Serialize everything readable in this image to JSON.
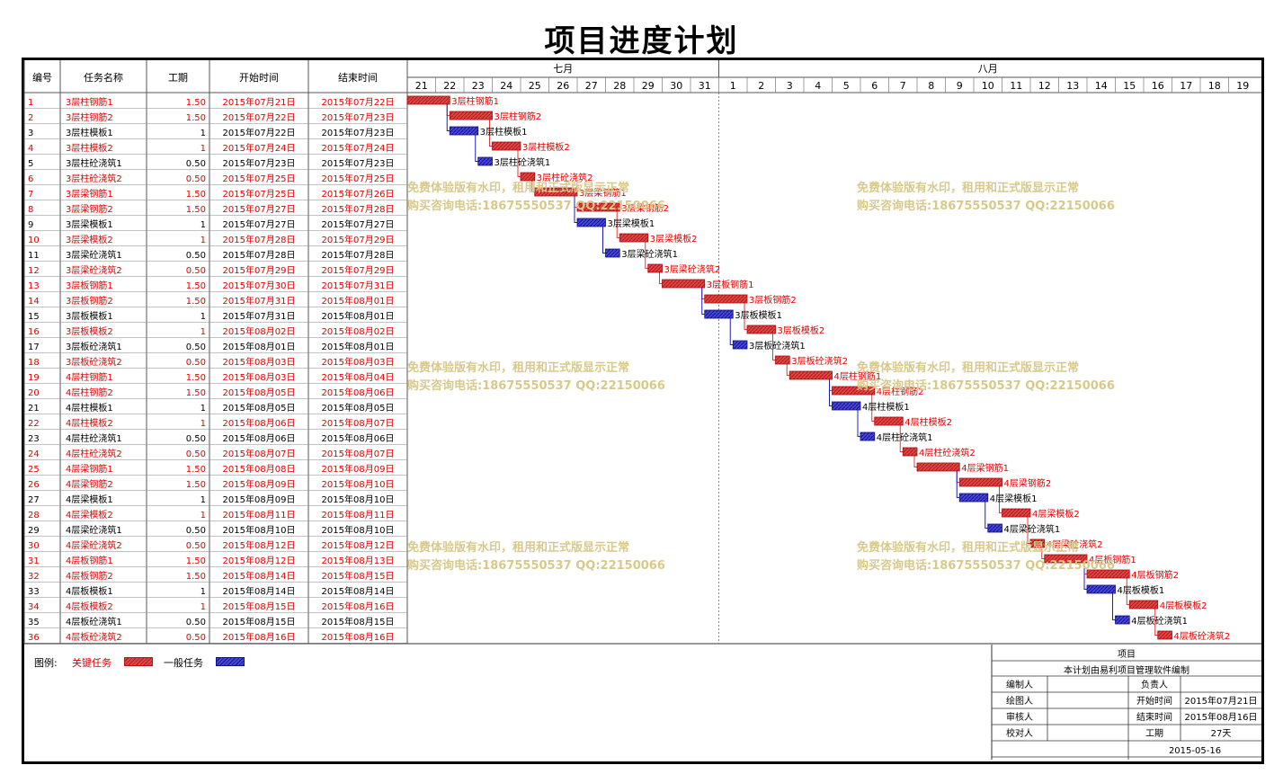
{
  "title": "项目进度计划",
  "colors": {
    "critical": "#e33b3b",
    "normal": "#3b3bc9",
    "critical_text": "#e00000",
    "watermark": "#d8c98a"
  },
  "headers": {
    "id": "编号",
    "name": "任务名称",
    "duration": "工期",
    "start": "开始时间",
    "end": "结束时间"
  },
  "watermark": {
    "line1": "免费体验版有水印，租用和正式版显示正常",
    "line2": "购买咨询电话:18675550537 QQ:22150066"
  },
  "legend": {
    "label": "图例:",
    "critical": "关键任务",
    "normal": "一般任务"
  },
  "info": {
    "project_label": "项目",
    "note": "本计划由易利项目管理软件编制",
    "rows": [
      {
        "l1": "编制人",
        "v1": "",
        "l2": "负责人",
        "v2": ""
      },
      {
        "l1": "绘图人",
        "v1": "",
        "l2": "开始时间",
        "v2": "2015年07月21日"
      },
      {
        "l1": "审核人",
        "v1": "",
        "l2": "结束时间",
        "v2": "2015年08月16日"
      },
      {
        "l1": "校对人",
        "v1": "",
        "l2": "工期",
        "v2": "27天"
      }
    ],
    "date": "2015-05-16"
  },
  "chart_data": {
    "type": "gantt",
    "timeline": {
      "months": [
        {
          "label": "七月",
          "days": [
            "21",
            "22",
            "23",
            "24",
            "25",
            "26",
            "27",
            "28",
            "29",
            "30",
            "31"
          ]
        },
        {
          "label": "八月",
          "days": [
            "1",
            "2",
            "3",
            "4",
            "5",
            "6",
            "7",
            "8",
            "9",
            "10",
            "11",
            "12",
            "13",
            "14",
            "15",
            "16",
            "17",
            "18",
            "19"
          ]
        }
      ],
      "origin": "2015-07-21"
    },
    "tasks": [
      {
        "id": "1",
        "name": "3层柱钢筋1",
        "dur": "1.50",
        "start": "2015年07月21日",
        "end": "2015年07月22日",
        "s": 0,
        "d": 1.5,
        "critical": true
      },
      {
        "id": "2",
        "name": "3层柱钢筋2",
        "dur": "1.50",
        "start": "2015年07月22日",
        "end": "2015年07月23日",
        "s": 1.5,
        "d": 1.5,
        "critical": true
      },
      {
        "id": "3",
        "name": "3层柱模板1",
        "dur": "1",
        "start": "2015年07月22日",
        "end": "2015年07月23日",
        "s": 1.5,
        "d": 1,
        "critical": false
      },
      {
        "id": "4",
        "name": "3层柱模板2",
        "dur": "1",
        "start": "2015年07月24日",
        "end": "2015年07月24日",
        "s": 3,
        "d": 1,
        "critical": true
      },
      {
        "id": "5",
        "name": "3层柱砼浇筑1",
        "dur": "0.50",
        "start": "2015年07月23日",
        "end": "2015年07月23日",
        "s": 2.5,
        "d": 0.5,
        "critical": false
      },
      {
        "id": "6",
        "name": "3层柱砼浇筑2",
        "dur": "0.50",
        "start": "2015年07月25日",
        "end": "2015年07月25日",
        "s": 4,
        "d": 0.5,
        "critical": true
      },
      {
        "id": "7",
        "name": "3层梁钢筋1",
        "dur": "1.50",
        "start": "2015年07月25日",
        "end": "2015年07月26日",
        "s": 4.5,
        "d": 1.5,
        "critical": true
      },
      {
        "id": "8",
        "name": "3层梁钢筋2",
        "dur": "1.50",
        "start": "2015年07月27日",
        "end": "2015年07月28日",
        "s": 6,
        "d": 1.5,
        "critical": true
      },
      {
        "id": "9",
        "name": "3层梁模板1",
        "dur": "1",
        "start": "2015年07月27日",
        "end": "2015年07月27日",
        "s": 6,
        "d": 1,
        "critical": false
      },
      {
        "id": "10",
        "name": "3层梁模板2",
        "dur": "1",
        "start": "2015年07月28日",
        "end": "2015年07月29日",
        "s": 7.5,
        "d": 1,
        "critical": true
      },
      {
        "id": "11",
        "name": "3层梁砼浇筑1",
        "dur": "0.50",
        "start": "2015年07月28日",
        "end": "2015年07月28日",
        "s": 7,
        "d": 0.5,
        "critical": false
      },
      {
        "id": "12",
        "name": "3层梁砼浇筑2",
        "dur": "0.50",
        "start": "2015年07月29日",
        "end": "2015年07月29日",
        "s": 8.5,
        "d": 0.5,
        "critical": true
      },
      {
        "id": "13",
        "name": "3层板钢筋1",
        "dur": "1.50",
        "start": "2015年07月30日",
        "end": "2015年07月31日",
        "s": 9,
        "d": 1.5,
        "critical": true
      },
      {
        "id": "14",
        "name": "3层板钢筋2",
        "dur": "1.50",
        "start": "2015年07月31日",
        "end": "2015年08月01日",
        "s": 10.5,
        "d": 1.5,
        "critical": true
      },
      {
        "id": "15",
        "name": "3层板模板1",
        "dur": "1",
        "start": "2015年07月31日",
        "end": "2015年08月01日",
        "s": 10.5,
        "d": 1,
        "critical": false
      },
      {
        "id": "16",
        "name": "3层板模板2",
        "dur": "1",
        "start": "2015年08月02日",
        "end": "2015年08月02日",
        "s": 12,
        "d": 1,
        "critical": true
      },
      {
        "id": "17",
        "name": "3层板砼浇筑1",
        "dur": "0.50",
        "start": "2015年08月01日",
        "end": "2015年08月01日",
        "s": 11.5,
        "d": 0.5,
        "critical": false
      },
      {
        "id": "18",
        "name": "3层板砼浇筑2",
        "dur": "0.50",
        "start": "2015年08月03日",
        "end": "2015年08月03日",
        "s": 13,
        "d": 0.5,
        "critical": true
      },
      {
        "id": "19",
        "name": "4层柱钢筋1",
        "dur": "1.50",
        "start": "2015年08月03日",
        "end": "2015年08月04日",
        "s": 13.5,
        "d": 1.5,
        "critical": true
      },
      {
        "id": "20",
        "name": "4层柱钢筋2",
        "dur": "1.50",
        "start": "2015年08月05日",
        "end": "2015年08月06日",
        "s": 15,
        "d": 1.5,
        "critical": true
      },
      {
        "id": "21",
        "name": "4层柱模板1",
        "dur": "1",
        "start": "2015年08月05日",
        "end": "2015年08月05日",
        "s": 15,
        "d": 1,
        "critical": false
      },
      {
        "id": "22",
        "name": "4层柱模板2",
        "dur": "1",
        "start": "2015年08月06日",
        "end": "2015年08月07日",
        "s": 16.5,
        "d": 1,
        "critical": true
      },
      {
        "id": "23",
        "name": "4层柱砼浇筑1",
        "dur": "0.50",
        "start": "2015年08月06日",
        "end": "2015年08月06日",
        "s": 16,
        "d": 0.5,
        "critical": false
      },
      {
        "id": "24",
        "name": "4层柱砼浇筑2",
        "dur": "0.50",
        "start": "2015年08月07日",
        "end": "2015年08月07日",
        "s": 17.5,
        "d": 0.5,
        "critical": true
      },
      {
        "id": "25",
        "name": "4层梁钢筋1",
        "dur": "1.50",
        "start": "2015年08月08日",
        "end": "2015年08月09日",
        "s": 18,
        "d": 1.5,
        "critical": true
      },
      {
        "id": "26",
        "name": "4层梁钢筋2",
        "dur": "1.50",
        "start": "2015年08月09日",
        "end": "2015年08月10日",
        "s": 19.5,
        "d": 1.5,
        "critical": true
      },
      {
        "id": "27",
        "name": "4层梁模板1",
        "dur": "1",
        "start": "2015年08月09日",
        "end": "2015年08月10日",
        "s": 19.5,
        "d": 1,
        "critical": false
      },
      {
        "id": "28",
        "name": "4层梁模板2",
        "dur": "1",
        "start": "2015年08月11日",
        "end": "2015年08月11日",
        "s": 21,
        "d": 1,
        "critical": true
      },
      {
        "id": "29",
        "name": "4层梁砼浇筑1",
        "dur": "0.50",
        "start": "2015年08月10日",
        "end": "2015年08月10日",
        "s": 20.5,
        "d": 0.5,
        "critical": false
      },
      {
        "id": "30",
        "name": "4层梁砼浇筑2",
        "dur": "0.50",
        "start": "2015年08月12日",
        "end": "2015年08月12日",
        "s": 22,
        "d": 0.5,
        "critical": true
      },
      {
        "id": "31",
        "name": "4层板钢筋1",
        "dur": "1.50",
        "start": "2015年08月12日",
        "end": "2015年08月13日",
        "s": 22.5,
        "d": 1.5,
        "critical": true
      },
      {
        "id": "32",
        "name": "4层板钢筋2",
        "dur": "1.50",
        "start": "2015年08月14日",
        "end": "2015年08月15日",
        "s": 24,
        "d": 1.5,
        "critical": true
      },
      {
        "id": "33",
        "name": "4层板模板1",
        "dur": "1",
        "start": "2015年08月14日",
        "end": "2015年08月14日",
        "s": 24,
        "d": 1,
        "critical": false
      },
      {
        "id": "34",
        "name": "4层板模板2",
        "dur": "1",
        "start": "2015年08月15日",
        "end": "2015年08月16日",
        "s": 25.5,
        "d": 1,
        "critical": true
      },
      {
        "id": "35",
        "name": "4层板砼浇筑1",
        "dur": "0.50",
        "start": "2015年08月15日",
        "end": "2015年08月15日",
        "s": 25,
        "d": 0.5,
        "critical": false
      },
      {
        "id": "36",
        "name": "4层板砼浇筑2",
        "dur": "0.50",
        "start": "2015年08月16日",
        "end": "2015年08月16日",
        "s": 26.5,
        "d": 0.5,
        "critical": true
      }
    ],
    "links": [
      [
        1,
        2
      ],
      [
        1,
        3
      ],
      [
        2,
        4
      ],
      [
        3,
        5
      ],
      [
        4,
        6
      ],
      [
        6,
        7
      ],
      [
        7,
        8
      ],
      [
        7,
        9
      ],
      [
        8,
        10
      ],
      [
        9,
        11
      ],
      [
        10,
        12
      ],
      [
        12,
        13
      ],
      [
        13,
        14
      ],
      [
        13,
        15
      ],
      [
        14,
        16
      ],
      [
        15,
        17
      ],
      [
        16,
        18
      ],
      [
        18,
        19
      ],
      [
        19,
        20
      ],
      [
        19,
        21
      ],
      [
        20,
        22
      ],
      [
        21,
        23
      ],
      [
        22,
        24
      ],
      [
        24,
        25
      ],
      [
        25,
        26
      ],
      [
        25,
        27
      ],
      [
        26,
        28
      ],
      [
        27,
        29
      ],
      [
        28,
        30
      ],
      [
        30,
        31
      ],
      [
        31,
        32
      ],
      [
        31,
        33
      ],
      [
        32,
        34
      ],
      [
        33,
        35
      ],
      [
        34,
        36
      ]
    ]
  }
}
